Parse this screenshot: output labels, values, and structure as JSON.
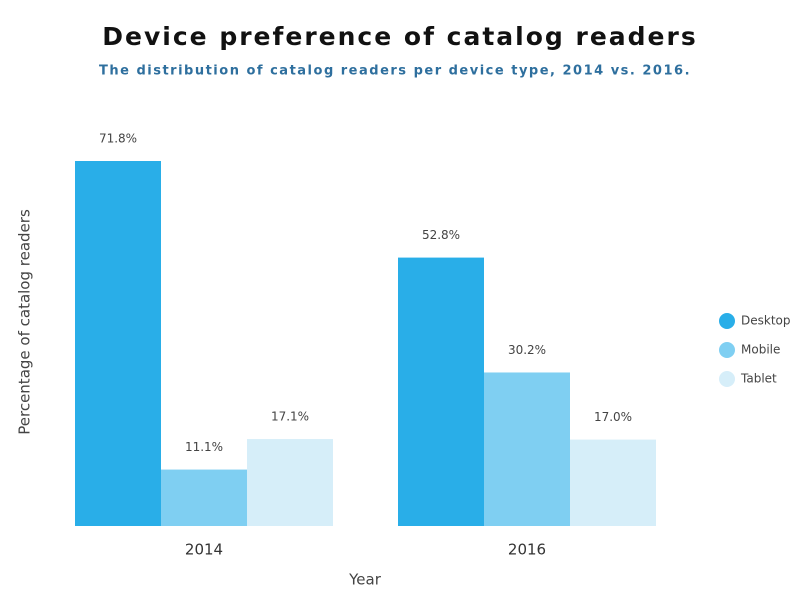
{
  "chart_data": {
    "type": "bar",
    "title": "Device preference of catalog readers",
    "subtitle": "The distribution of catalog readers per device type, 2014 vs. 2016.",
    "x_label": "Year",
    "y_label": "Percentage of catalog readers",
    "categories": [
      "2014",
      "2016"
    ],
    "series": [
      {
        "name": "Desktop",
        "color": "#29aee8",
        "values": [
          71.8,
          52.8
        ],
        "value_labels": [
          "71.8%",
          "52.8%"
        ]
      },
      {
        "name": "Mobile",
        "color": "#7fcff2",
        "values": [
          11.1,
          30.2
        ],
        "value_labels": [
          "11.1%",
          "30.2%"
        ]
      },
      {
        "name": "Tablet",
        "color": "#d6eef9",
        "values": [
          17.1,
          17.0
        ],
        "value_labels": [
          "17.1%",
          "17.0%"
        ]
      }
    ],
    "legend": "right"
  }
}
